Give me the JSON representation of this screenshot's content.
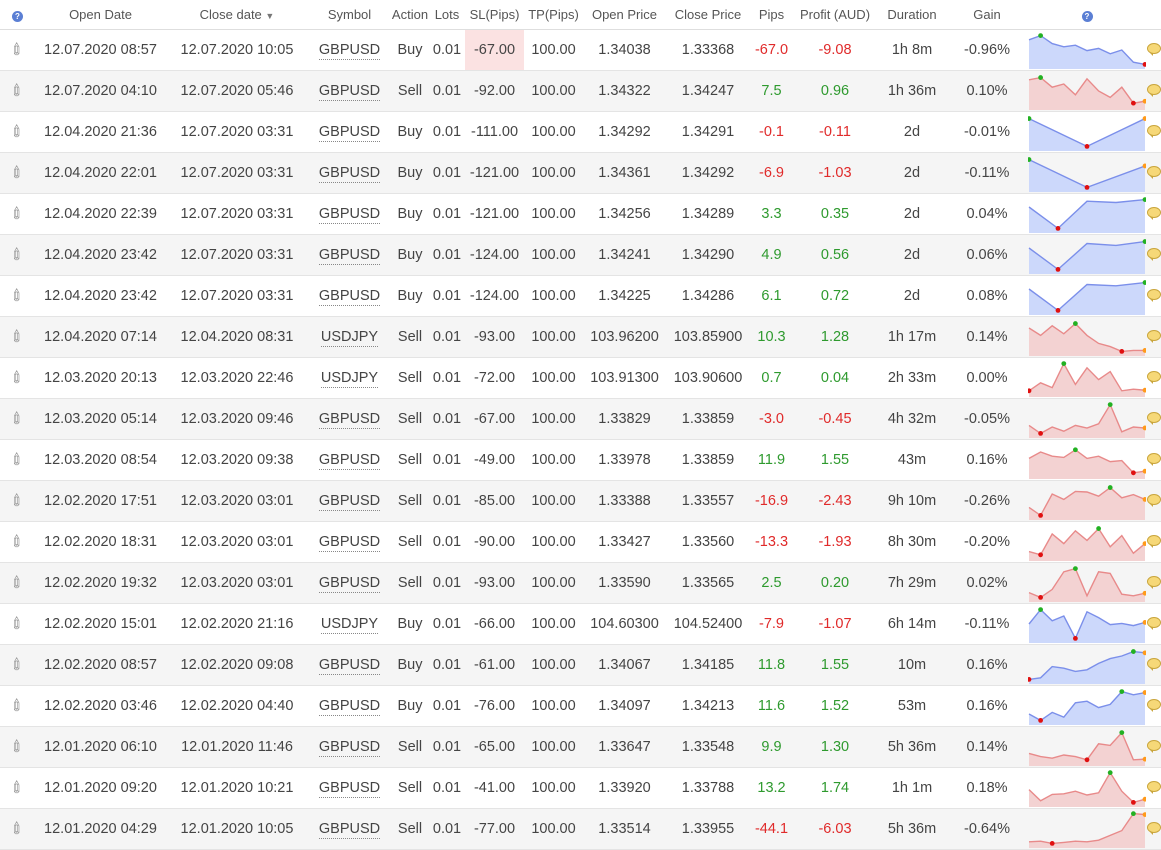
{
  "headers": {
    "open_date": "Open Date",
    "close_date": "Close date",
    "symbol": "Symbol",
    "action": "Action",
    "lots": "Lots",
    "sl": "SL(Pips)",
    "tp": "TP(Pips)",
    "open_price": "Open Price",
    "close_price": "Close Price",
    "pips": "Pips",
    "profit": "Profit (AUD)",
    "duration": "Duration",
    "gain": "Gain",
    "help_icon": "?"
  },
  "colors": {
    "positive": "#2e9a2e",
    "negative": "#e02a2a",
    "buy_chart": "#ccd8fb",
    "sell_chart": "#f3d2d2"
  },
  "rows": [
    {
      "open": "12.07.2020 08:57",
      "close": "12.07.2020 10:05",
      "symbol": "GBPUSD",
      "action": "Buy",
      "lots": "0.01",
      "sl": "-67.00",
      "tp": "100.00",
      "open_price": "1.34038",
      "close_price": "1.33368",
      "pips": "-67.0",
      "profit": "-9.08",
      "duration": "1h 8m",
      "gain": "-0.96%",
      "sl_hit": true,
      "spark": [
        0.82,
        0.95,
        0.7,
        0.6,
        0.65,
        0.48,
        0.55,
        0.38,
        0.5,
        0.12,
        0.05
      ]
    },
    {
      "open": "12.07.2020 04:10",
      "close": "12.07.2020 05:46",
      "symbol": "GBPUSD",
      "action": "Sell",
      "lots": "0.01",
      "sl": "-92.00",
      "tp": "100.00",
      "open_price": "1.34322",
      "close_price": "1.34247",
      "pips": "7.5",
      "profit": "0.96",
      "duration": "1h 36m",
      "gain": "0.10%",
      "spark": [
        0.85,
        0.92,
        0.62,
        0.72,
        0.38,
        0.88,
        0.5,
        0.3,
        0.62,
        0.12,
        0.18
      ]
    },
    {
      "open": "12.04.2020 21:36",
      "close": "12.07.2020 03:31",
      "symbol": "GBPUSD",
      "action": "Buy",
      "lots": "0.01",
      "sl": "-111.00",
      "tp": "100.00",
      "open_price": "1.34292",
      "close_price": "1.34291",
      "pips": "-0.1",
      "profit": "-0.11",
      "duration": "2d",
      "gain": "-0.01%",
      "spark": [
        0.92,
        0.05,
        0.92
      ]
    },
    {
      "open": "12.04.2020 22:01",
      "close": "12.07.2020 03:31",
      "symbol": "GBPUSD",
      "action": "Buy",
      "lots": "0.01",
      "sl": "-121.00",
      "tp": "100.00",
      "open_price": "1.34361",
      "close_price": "1.34292",
      "pips": "-6.9",
      "profit": "-1.03",
      "duration": "2d",
      "gain": "-0.11%",
      "spark": [
        0.92,
        0.05,
        0.72
      ]
    },
    {
      "open": "12.04.2020 22:39",
      "close": "12.07.2020 03:31",
      "symbol": "GBPUSD",
      "action": "Buy",
      "lots": "0.01",
      "sl": "-121.00",
      "tp": "100.00",
      "open_price": "1.34256",
      "close_price": "1.34289",
      "pips": "3.3",
      "profit": "0.35",
      "duration": "2d",
      "gain": "0.04%",
      "spark": [
        0.72,
        0.05,
        0.9,
        0.86,
        0.95
      ]
    },
    {
      "open": "12.04.2020 23:42",
      "close": "12.07.2020 03:31",
      "symbol": "GBPUSD",
      "action": "Buy",
      "lots": "0.01",
      "sl": "-124.00",
      "tp": "100.00",
      "open_price": "1.34241",
      "close_price": "1.34290",
      "pips": "4.9",
      "profit": "0.56",
      "duration": "2d",
      "gain": "0.06%",
      "spark": [
        0.72,
        0.05,
        0.86,
        0.8,
        0.92
      ]
    },
    {
      "open": "12.04.2020 23:42",
      "close": "12.07.2020 03:31",
      "symbol": "GBPUSD",
      "action": "Buy",
      "lots": "0.01",
      "sl": "-124.00",
      "tp": "100.00",
      "open_price": "1.34225",
      "close_price": "1.34286",
      "pips": "6.1",
      "profit": "0.72",
      "duration": "2d",
      "gain": "0.08%",
      "spark": [
        0.72,
        0.05,
        0.86,
        0.82,
        0.92
      ]
    },
    {
      "open": "12.04.2020 07:14",
      "close": "12.04.2020 08:31",
      "symbol": "USDJPY",
      "action": "Sell",
      "lots": "0.01",
      "sl": "-93.00",
      "tp": "100.00",
      "open_price": "103.96200",
      "close_price": "103.85900",
      "pips": "10.3",
      "profit": "1.28",
      "duration": "1h 17m",
      "gain": "0.14%",
      "spark": [
        0.78,
        0.55,
        0.85,
        0.6,
        0.92,
        0.55,
        0.3,
        0.2,
        0.05,
        0.08,
        0.08
      ]
    },
    {
      "open": "12.03.2020 20:13",
      "close": "12.03.2020 22:46",
      "symbol": "USDJPY",
      "action": "Sell",
      "lots": "0.01",
      "sl": "-72.00",
      "tp": "100.00",
      "open_price": "103.91300",
      "close_price": "103.90600",
      "pips": "0.7",
      "profit": "0.04",
      "duration": "2h 33m",
      "gain": "0.00%",
      "spark": [
        0.1,
        0.35,
        0.2,
        0.95,
        0.3,
        0.82,
        0.45,
        0.7,
        0.1,
        0.15,
        0.12
      ]
    },
    {
      "open": "12.03.2020 05:14",
      "close": "12.03.2020 09:46",
      "symbol": "GBPUSD",
      "action": "Sell",
      "lots": "0.01",
      "sl": "-67.00",
      "tp": "100.00",
      "open_price": "1.33829",
      "close_price": "1.33859",
      "pips": "-3.0",
      "profit": "-0.45",
      "duration": "4h 32m",
      "gain": "-0.05%",
      "spark": [
        0.3,
        0.05,
        0.25,
        0.12,
        0.3,
        0.22,
        0.35,
        0.95,
        0.1,
        0.25,
        0.22
      ]
    },
    {
      "open": "12.03.2020 08:54",
      "close": "12.03.2020 09:38",
      "symbol": "GBPUSD",
      "action": "Sell",
      "lots": "0.01",
      "sl": "-49.00",
      "tp": "100.00",
      "open_price": "1.33978",
      "close_price": "1.33859",
      "pips": "11.9",
      "profit": "1.55",
      "duration": "43m",
      "gain": "0.16%",
      "spark": [
        0.55,
        0.75,
        0.62,
        0.58,
        0.82,
        0.55,
        0.62,
        0.45,
        0.48,
        0.1,
        0.15
      ]
    },
    {
      "open": "12.02.2020 17:51",
      "close": "12.03.2020 03:01",
      "symbol": "GBPUSD",
      "action": "Sell",
      "lots": "0.01",
      "sl": "-85.00",
      "tp": "100.00",
      "open_price": "1.33388",
      "close_price": "1.33557",
      "pips": "-16.9",
      "profit": "-2.43",
      "duration": "9h 10m",
      "gain": "-0.26%",
      "spark": [
        0.3,
        0.05,
        0.72,
        0.55,
        0.8,
        0.78,
        0.65,
        0.92,
        0.6,
        0.7,
        0.55
      ]
    },
    {
      "open": "12.02.2020 18:31",
      "close": "12.03.2020 03:01",
      "symbol": "GBPUSD",
      "action": "Sell",
      "lots": "0.01",
      "sl": "-90.00",
      "tp": "100.00",
      "open_price": "1.33427",
      "close_price": "1.33560",
      "pips": "-13.3",
      "profit": "-1.93",
      "duration": "8h 30m",
      "gain": "-0.20%",
      "spark": [
        0.2,
        0.1,
        0.75,
        0.45,
        0.85,
        0.55,
        0.92,
        0.35,
        0.7,
        0.15,
        0.45
      ]
    },
    {
      "open": "12.02.2020 19:32",
      "close": "12.03.2020 03:01",
      "symbol": "GBPUSD",
      "action": "Sell",
      "lots": "0.01",
      "sl": "-93.00",
      "tp": "100.00",
      "open_price": "1.33590",
      "close_price": "1.33565",
      "pips": "2.5",
      "profit": "0.20",
      "duration": "7h 29m",
      "gain": "0.02%",
      "spark": [
        0.2,
        0.05,
        0.3,
        0.85,
        0.95,
        0.1,
        0.85,
        0.8,
        0.15,
        0.1,
        0.18
      ]
    },
    {
      "open": "12.02.2020 15:01",
      "close": "12.02.2020 21:16",
      "symbol": "USDJPY",
      "action": "Buy",
      "lots": "0.01",
      "sl": "-66.00",
      "tp": "100.00",
      "open_price": "104.60300",
      "close_price": "104.52400",
      "pips": "-7.9",
      "profit": "-1.07",
      "duration": "6h 14m",
      "gain": "-0.11%",
      "spark": [
        0.5,
        0.95,
        0.6,
        0.75,
        0.05,
        0.88,
        0.7,
        0.48,
        0.52,
        0.45,
        0.55
      ]
    },
    {
      "open": "12.02.2020 08:57",
      "close": "12.02.2020 09:08",
      "symbol": "GBPUSD",
      "action": "Buy",
      "lots": "0.01",
      "sl": "-61.00",
      "tp": "100.00",
      "open_price": "1.34067",
      "close_price": "1.34185",
      "pips": "11.8",
      "profit": "1.55",
      "duration": "10m",
      "gain": "0.16%",
      "spark": [
        0.05,
        0.1,
        0.45,
        0.4,
        0.3,
        0.35,
        0.55,
        0.7,
        0.78,
        0.92,
        0.88
      ]
    },
    {
      "open": "12.02.2020 03:46",
      "close": "12.02.2020 04:40",
      "symbol": "GBPUSD",
      "action": "Buy",
      "lots": "0.01",
      "sl": "-76.00",
      "tp": "100.00",
      "open_price": "1.34097",
      "close_price": "1.34213",
      "pips": "11.6",
      "profit": "1.52",
      "duration": "53m",
      "gain": "0.16%",
      "spark": [
        0.25,
        0.05,
        0.3,
        0.15,
        0.6,
        0.65,
        0.45,
        0.55,
        0.95,
        0.85,
        0.92
      ]
    },
    {
      "open": "12.01.2020 06:10",
      "close": "12.01.2020 11:46",
      "symbol": "GBPUSD",
      "action": "Sell",
      "lots": "0.01",
      "sl": "-65.00",
      "tp": "100.00",
      "open_price": "1.33647",
      "close_price": "1.33548",
      "pips": "9.9",
      "profit": "1.30",
      "duration": "5h 36m",
      "gain": "0.14%",
      "spark": [
        0.3,
        0.2,
        0.15,
        0.25,
        0.2,
        0.1,
        0.6,
        0.55,
        0.95,
        0.1,
        0.12
      ]
    },
    {
      "open": "12.01.2020 09:20",
      "close": "12.01.2020 10:21",
      "symbol": "GBPUSD",
      "action": "Sell",
      "lots": "0.01",
      "sl": "-41.00",
      "tp": "100.00",
      "open_price": "1.33920",
      "close_price": "1.33788",
      "pips": "13.2",
      "profit": "1.74",
      "duration": "1h 1m",
      "gain": "0.18%",
      "spark": [
        0.45,
        0.1,
        0.3,
        0.32,
        0.4,
        0.28,
        0.35,
        0.98,
        0.4,
        0.05,
        0.15
      ]
    },
    {
      "open": "12.01.2020 04:29",
      "close": "12.01.2020 10:05",
      "symbol": "GBPUSD",
      "action": "Sell",
      "lots": "0.01",
      "sl": "-77.00",
      "tp": "100.00",
      "open_price": "1.33514",
      "close_price": "1.33955",
      "pips": "-44.1",
      "profit": "-6.03",
      "duration": "5h 36m",
      "gain": "-0.64%",
      "spark": [
        0.1,
        0.12,
        0.05,
        0.08,
        0.12,
        0.1,
        0.15,
        0.3,
        0.45,
        0.98,
        0.95
      ]
    }
  ]
}
